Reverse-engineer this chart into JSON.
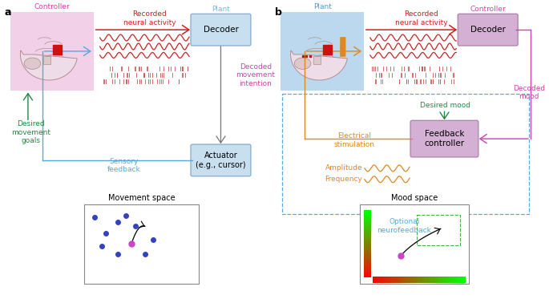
{
  "panel_a": {
    "label": "a",
    "controller_label": "Controller",
    "controller_bg": "#f2d0e8",
    "plant_label": "Plant",
    "plant_color": "#7ab8d8",
    "decoder_label": "Decoder",
    "decoder_bg": "#c8dff0",
    "decoder_edge": "#88aacc",
    "actuator_label": "Actuator\n(e.g., cursor)",
    "actuator_bg": "#c8dff0",
    "actuator_edge": "#88aacc",
    "recorded_label": "Recorded\nneural activity",
    "decoded_label": "Decoded\nmovement\nintention",
    "sensory_label": "Sensory\nfeedback",
    "desired_label": "Desired\nmovement\ngoals",
    "movement_space_label": "Movement space",
    "neural_activity_color": "#cc2222",
    "decoded_color": "#cc44aa",
    "sensory_color": "#55aadd",
    "desired_color": "#228844",
    "arrow_gray": "#777777"
  },
  "panel_b": {
    "label": "b",
    "plant_label": "Plant",
    "plant_bg": "#bbd8ee",
    "controller_label": "Controller",
    "controller_bg": "#e0c0e0",
    "decoder_label": "Decoder",
    "decoder_bg": "#d4b0d4",
    "decoder_edge": "#aa80aa",
    "feedback_label": "Feedback\ncontroller",
    "feedback_bg": "#d4b0d4",
    "feedback_edge": "#aa80aa",
    "recorded_label": "Recorded\nneural activity",
    "decoded_label": "Decoded\nmood",
    "desired_label": "Desired mood",
    "electrical_label": "Electrical\nstimulation",
    "amplitude_label": "Amplitude",
    "frequency_label": "Frequency",
    "optional_label": "Optional\nneurofeedback",
    "mood_space_label": "Mood space",
    "neural_activity_color": "#cc2222",
    "decoded_color": "#cc44aa",
    "desired_color": "#228844",
    "electrical_color": "#dd8822",
    "optional_color": "#55aadd",
    "arrow_gray": "#777777"
  }
}
